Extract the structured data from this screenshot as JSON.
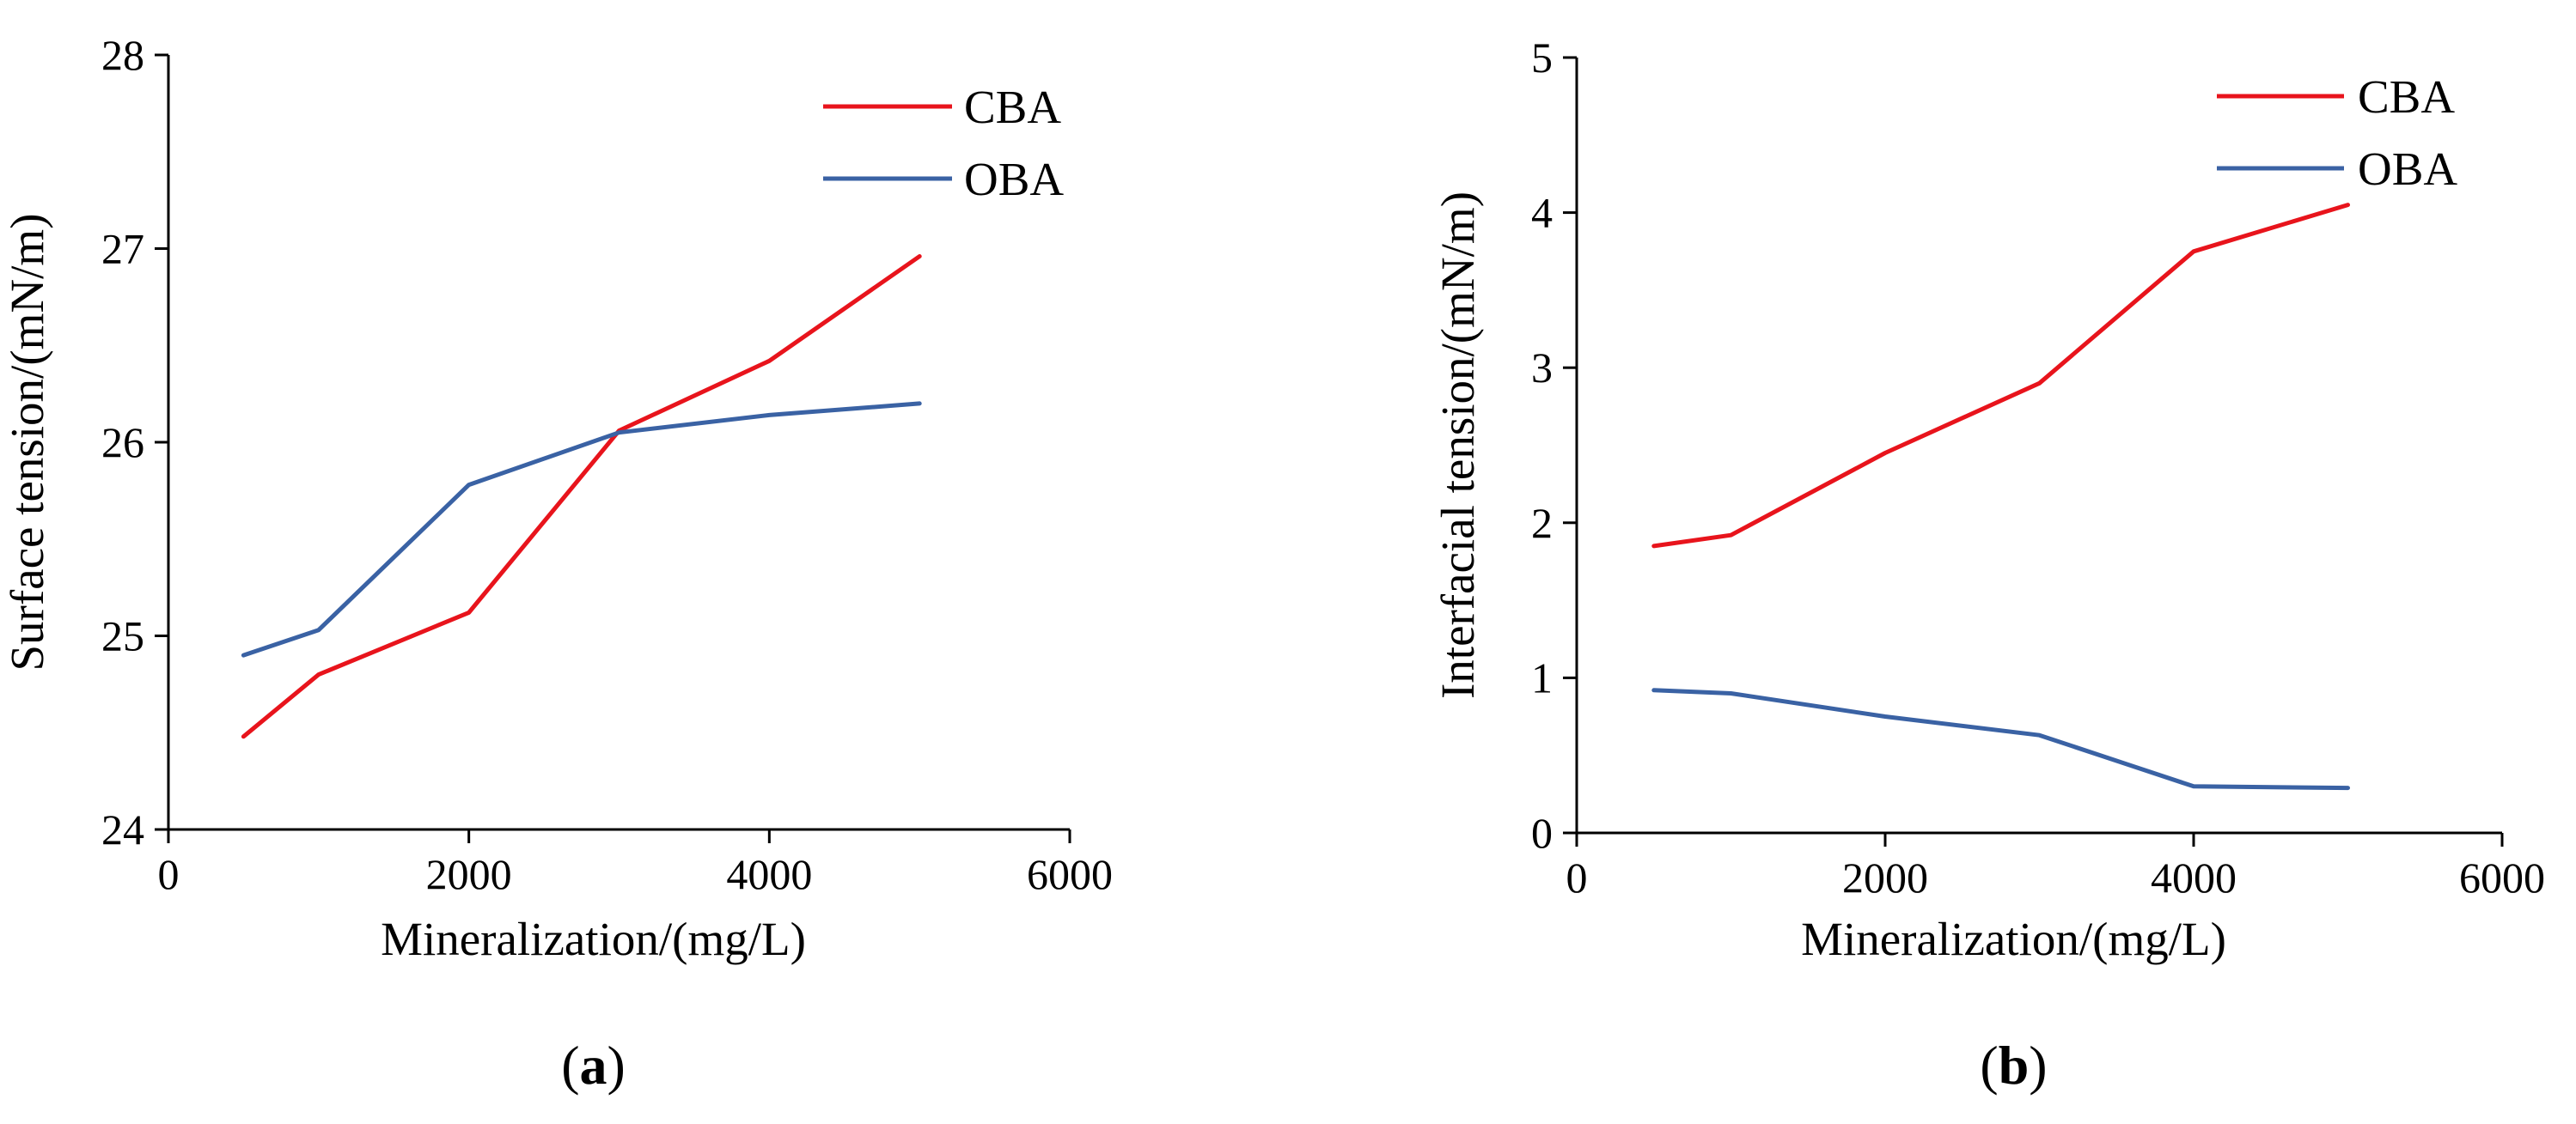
{
  "colors": {
    "CBA": "#e8141c",
    "OBA": "#3a62a4",
    "axis": "#000000"
  },
  "chart_data": [
    {
      "type": "line",
      "panel_label": "(a)",
      "panel_letter": "a",
      "xlabel": "Mineralization/(mg/L)",
      "ylabel": "Surface tension/(mN/m)",
      "xlim": [
        0,
        6000
      ],
      "ylim": [
        24,
        28
      ],
      "x_ticks": [
        "0",
        "2000",
        "4000",
        "6000"
      ],
      "y_ticks": [
        "24",
        "25",
        "26",
        "27",
        "28"
      ],
      "legend_position": "top-right",
      "series": [
        {
          "name": "CBA",
          "x": [
            500,
            1000,
            2000,
            3000,
            4000,
            5000
          ],
          "values": [
            24.48,
            24.8,
            25.12,
            26.06,
            26.42,
            26.96
          ]
        },
        {
          "name": "OBA",
          "x": [
            500,
            1000,
            2000,
            3000,
            4000,
            5000
          ],
          "values": [
            24.9,
            25.03,
            25.78,
            26.05,
            26.14,
            26.2
          ]
        }
      ]
    },
    {
      "type": "line",
      "panel_label": "(b)",
      "panel_letter": "b",
      "xlabel": "Mineralization/(mg/L)",
      "ylabel": "Interfacial tension/(mN/m)",
      "xlim": [
        0,
        6000
      ],
      "ylim": [
        0,
        5
      ],
      "x_ticks": [
        "0",
        "2000",
        "4000",
        "6000"
      ],
      "y_ticks": [
        "0",
        "1",
        "2",
        "3",
        "4",
        "5"
      ],
      "legend_position": "top-right",
      "series": [
        {
          "name": "CBA",
          "x": [
            500,
            1000,
            2000,
            3000,
            4000,
            5000
          ],
          "values": [
            1.85,
            1.92,
            2.45,
            2.9,
            3.75,
            4.05
          ]
        },
        {
          "name": "OBA",
          "x": [
            500,
            1000,
            2000,
            3000,
            4000,
            5000
          ],
          "values": [
            0.92,
            0.9,
            0.75,
            0.63,
            0.3,
            0.29
          ]
        }
      ]
    }
  ]
}
